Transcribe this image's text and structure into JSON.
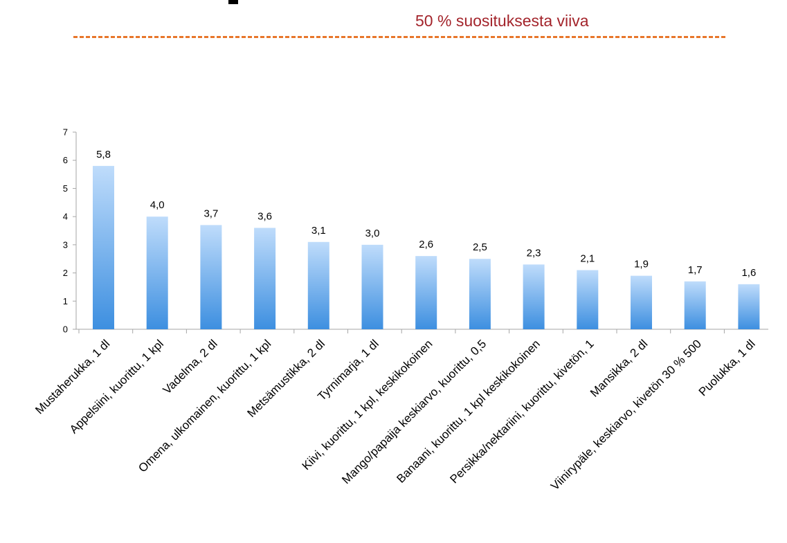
{
  "reference_line": {
    "label": "50 % suosituksesta viiva",
    "color": "#e8762a",
    "label_color": "#a3242b"
  },
  "colors": {
    "bar_top": "#bfdcfb",
    "bar_bottom": "#3d8fe0",
    "axis": "#a6a6a6"
  },
  "chart_data": {
    "type": "bar",
    "title": "",
    "xlabel": "",
    "ylabel": "",
    "ylim": [
      0,
      7
    ],
    "yticks": [
      0,
      1,
      2,
      3,
      4,
      5,
      6,
      7
    ],
    "grid": false,
    "legend": "none",
    "categories": [
      "Mustaherukka, 1 dl",
      "Appelsiini, kuorittu, 1 kpl",
      "Vadelma, 2 dl",
      "Omena, ulkomainen, kuorittu, 1 kpl",
      "Metsämustikka, 2 dl",
      "Tyrnimarja, 1 dl",
      "Kiivi, kuorittu, 1 kpl, keskikokoinen",
      "Mango/papaija keskiarvo, kuorittu, 0,5",
      "Banaani, kuorittu, 1 kpl keskikokoinen",
      "Persikka/nektariini, kuorittu, kivetön, 1",
      "Mansikka, 2 dl",
      "Viinirypäle, keskiarvo, kivetön  30 % 500",
      "Puolukka, 1 dl"
    ],
    "values": [
      5.8,
      4.0,
      3.7,
      3.6,
      3.1,
      3.0,
      2.6,
      2.5,
      2.3,
      2.1,
      1.9,
      1.7,
      1.6
    ],
    "value_labels": [
      "5,8",
      "4,0",
      "3,7",
      "3,6",
      "3,1",
      "3,0",
      "2,6",
      "2,5",
      "2,3",
      "2,1",
      "1,9",
      "1,7",
      "1,6"
    ]
  }
}
